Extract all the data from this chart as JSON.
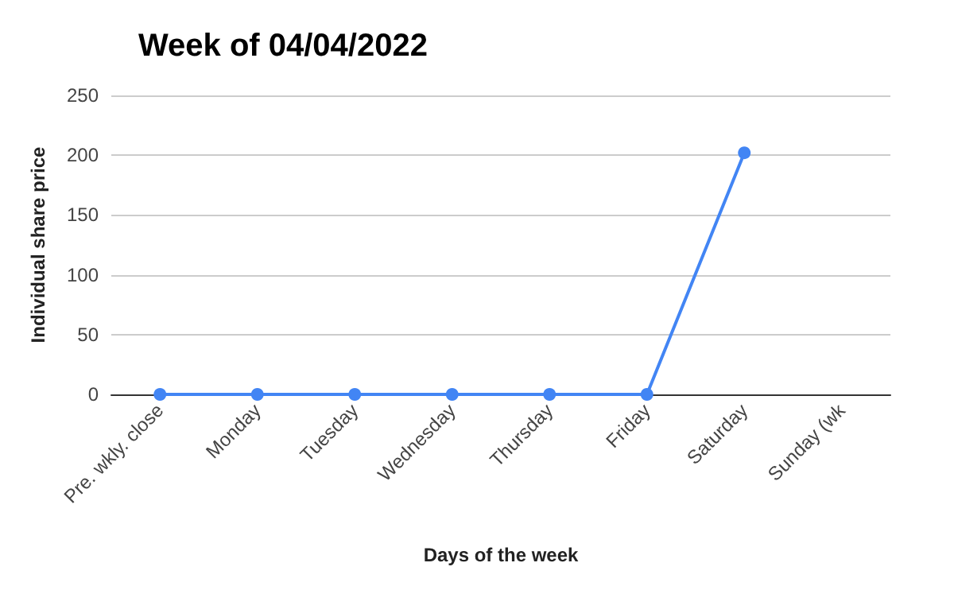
{
  "chart_data": {
    "type": "line",
    "title": "Week of 04/04/2022",
    "xlabel": "Days of the week",
    "ylabel": "Individual share price",
    "categories": [
      "Pre. wkly. close",
      "Monday",
      "Tuesday",
      "Wednesday",
      "Thursday",
      "Friday",
      "Saturday",
      "Sunday (wk"
    ],
    "series": [
      {
        "color": "#4285f4",
        "values": [
          0,
          0,
          0,
          0,
          0,
          0,
          202,
          null
        ]
      }
    ],
    "ylim": [
      0,
      250
    ],
    "yticks": [
      0,
      50,
      100,
      150,
      200,
      250
    ],
    "grid": "y",
    "marker": "circle",
    "line_style": "solid"
  }
}
